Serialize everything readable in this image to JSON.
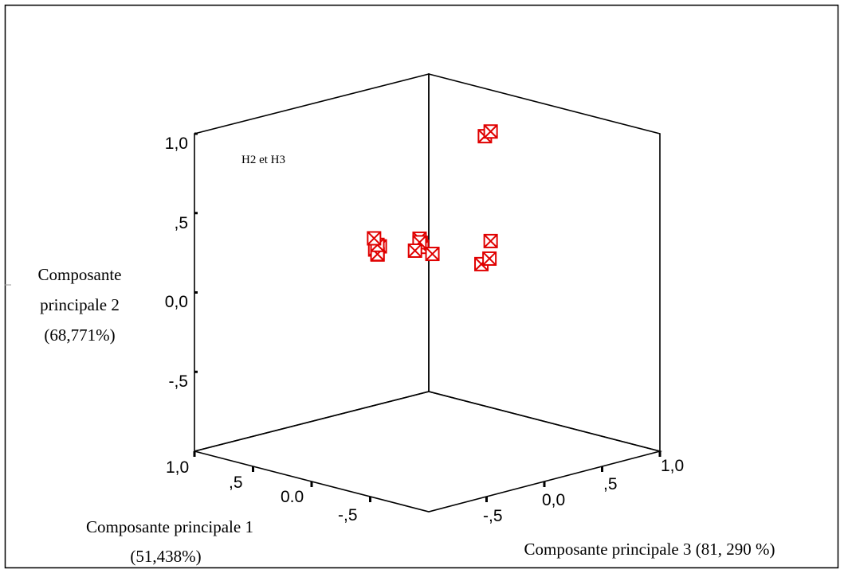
{
  "chart_data": {
    "type": "scatter",
    "projection": "3d",
    "marker": "boxed-x",
    "marker_color": "#e00000",
    "axes": {
      "x": {
        "label_line1": "Composante principale 1",
        "label_line2": "(51,438%)",
        "ticks": [
          "1,0",
          ",5",
          "0.0",
          "-,5"
        ]
      },
      "y": {
        "label_line1": "Composante",
        "label_line2": "principale 2",
        "label_line3": "(68,771%)",
        "ticks": [
          "1,0",
          ",5",
          "0,0",
          "-,5"
        ]
      },
      "z": {
        "label": "Composante principale 3 (81, 290 %)",
        "ticks": [
          "-,5",
          "0,0",
          ",5",
          "1,0"
        ]
      }
    },
    "annotations": [
      {
        "text": "H2 et H3"
      }
    ],
    "points": [
      {
        "x": 0.05,
        "y": 0.87,
        "z": 0.55
      },
      {
        "x": 0.05,
        "y": 0.89,
        "z": 0.6
      },
      {
        "x": 0.7,
        "y": 0.1,
        "z": 0.3
      },
      {
        "x": 0.72,
        "y": 0.08,
        "z": 0.28
      },
      {
        "x": 0.68,
        "y": 0.06,
        "z": 0.26
      },
      {
        "x": 0.74,
        "y": 0.04,
        "z": 0.32
      },
      {
        "x": 0.76,
        "y": 0.09,
        "z": 0.34
      },
      {
        "x": 0.7,
        "y": 0.16,
        "z": 0.25
      },
      {
        "x": 0.4,
        "y": 0.17,
        "z": 0.35
      },
      {
        "x": 0.42,
        "y": 0.19,
        "z": 0.36
      },
      {
        "x": 0.38,
        "y": 0.15,
        "z": 0.34
      },
      {
        "x": 0.44,
        "y": 0.16,
        "z": 0.38
      },
      {
        "x": 0.4,
        "y": 0.13,
        "z": 0.3
      },
      {
        "x": 0.35,
        "y": 0.1,
        "z": 0.4
      },
      {
        "x": 0.05,
        "y": 0.2,
        "z": 0.6
      },
      {
        "x": 0.05,
        "y": 0.07,
        "z": 0.52
      },
      {
        "x": 0.08,
        "y": 0.08,
        "z": 0.62
      }
    ]
  }
}
